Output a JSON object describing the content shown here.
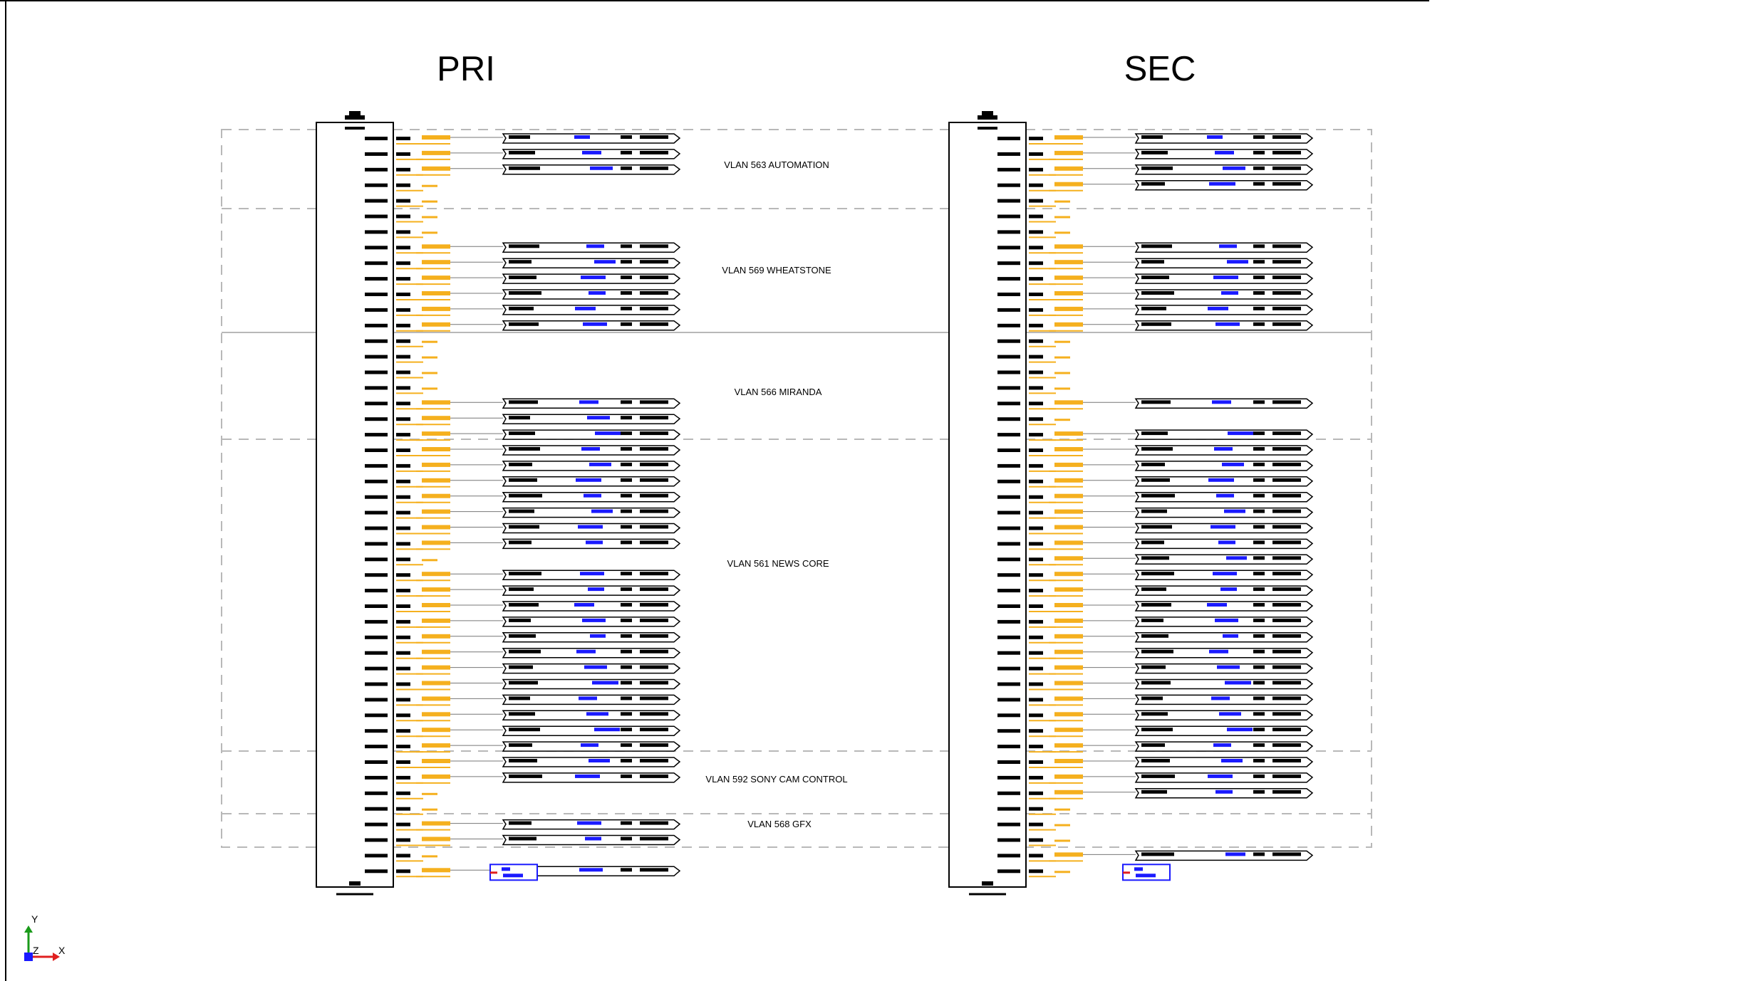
{
  "panels": [
    {
      "title": "PRI"
    },
    {
      "title": "SEC"
    }
  ],
  "vlans": [
    {
      "label": "VLAN 563 AUTOMATION"
    },
    {
      "label": "VLAN 569 WHEATSTONE"
    },
    {
      "label": "VLAN 566 MIRANDA"
    },
    {
      "label": "VLAN 561 NEWS CORE"
    },
    {
      "label": "VLAN 592 SONY CAM CONTROL"
    },
    {
      "label": "VLAN 568 GFX"
    }
  ],
  "ucs_icon": {
    "axis_y": "Y",
    "axis_z": "Z",
    "axis_x": "X"
  },
  "colors": {
    "background": "#ffffff",
    "ports": "#000000",
    "patch": "#f5b01e",
    "label_accent": "#1a1aff",
    "group_border": "#b8b8b8",
    "text": "#000000"
  }
}
